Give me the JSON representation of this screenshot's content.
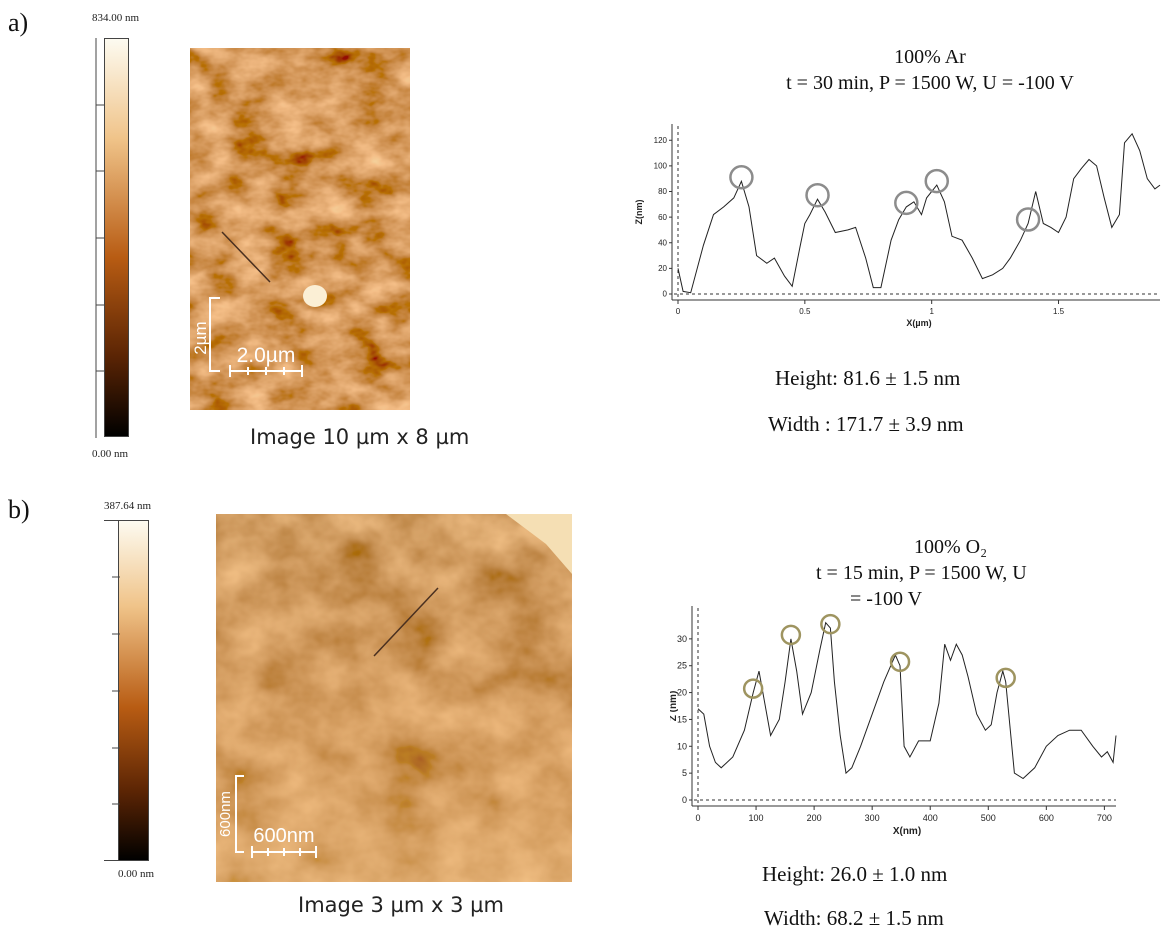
{
  "panels": [
    {
      "label": "a)",
      "colorbar": {
        "max_label": "834.00 nm",
        "min_label": "0.00 nm"
      },
      "afm_image": {
        "caption": "Image 10 µm x 8 µm",
        "scalebar_vertical": "2µm",
        "scalebar_horizontal": "2.0µm"
      },
      "condition": {
        "line1": "100% Ar",
        "line2": "t = 30 min, P = 1500 W, U = -100 V"
      },
      "measurements": {
        "height": "Height: 81.6 ± 1.5 nm",
        "width": "Width : 171.7 ± 3.9 nm"
      }
    },
    {
      "label": "b)",
      "colorbar": {
        "max_label": "387.64 nm",
        "min_label": "0.00 nm"
      },
      "afm_image": {
        "caption": "Image 3 µm x 3 µm",
        "scalebar_vertical": "600nm",
        "scalebar_horizontal": "600nm"
      },
      "condition": {
        "line1": "100% O₂",
        "line2": "t = 15 min, P = 1500 W, U",
        "line3": "= -100 V"
      },
      "measurements": {
        "height": "Height: 26.0 ± 1.0 nm",
        "width": "Width: 68.2 ± 1.5 nm"
      }
    }
  ],
  "chart_data": [
    {
      "type": "line",
      "xlabel": "X(µm)",
      "ylabel": "Z(nm)",
      "xlim": [
        0,
        1.9
      ],
      "ylim": [
        0,
        128
      ],
      "xticks": [
        0,
        0.5,
        1,
        1.5
      ],
      "xtick_labels": [
        "0",
        "0.5",
        "1",
        "1.5"
      ],
      "yticks": [
        0,
        20,
        40,
        60,
        80,
        100,
        120
      ],
      "x": [
        0,
        0.02,
        0.05,
        0.1,
        0.14,
        0.18,
        0.22,
        0.25,
        0.28,
        0.31,
        0.35,
        0.38,
        0.42,
        0.45,
        0.48,
        0.5,
        0.52,
        0.55,
        0.58,
        0.62,
        0.67,
        0.7,
        0.74,
        0.77,
        0.8,
        0.84,
        0.87,
        0.9,
        0.93,
        0.96,
        0.98,
        1.02,
        1.05,
        1.08,
        1.12,
        1.16,
        1.2,
        1.24,
        1.28,
        1.31,
        1.35,
        1.38,
        1.41,
        1.44,
        1.47,
        1.5,
        1.53,
        1.56,
        1.59,
        1.62,
        1.65,
        1.68,
        1.71,
        1.74,
        1.76,
        1.79,
        1.82,
        1.85,
        1.88,
        1.9
      ],
      "y": [
        20,
        2,
        1,
        38,
        62,
        68,
        75,
        88,
        68,
        30,
        24,
        28,
        14,
        6,
        36,
        55,
        62,
        74,
        64,
        48,
        50,
        52,
        28,
        5,
        5,
        42,
        58,
        68,
        72,
        62,
        75,
        85,
        72,
        45,
        42,
        28,
        12,
        15,
        20,
        28,
        42,
        55,
        80,
        55,
        52,
        48,
        60,
        90,
        98,
        105,
        100,
        75,
        52,
        62,
        118,
        125,
        112,
        90,
        82,
        85
      ],
      "highlighted_peaks_x": [
        0.25,
        0.55,
        0.9,
        1.03,
        1.39
      ]
    },
    {
      "type": "line",
      "xlabel": "X(nm)",
      "ylabel": "Z (nm)",
      "xlim": [
        0,
        720
      ],
      "ylim": [
        0,
        35
      ],
      "xticks": [
        0,
        100,
        200,
        300,
        400,
        500,
        600,
        700
      ],
      "yticks": [
        0,
        5,
        10,
        15,
        20,
        25,
        30
      ],
      "x": [
        0,
        10,
        20,
        30,
        40,
        60,
        80,
        95,
        105,
        115,
        125,
        140,
        150,
        160,
        170,
        180,
        195,
        210,
        220,
        228,
        235,
        245,
        255,
        265,
        280,
        300,
        320,
        340,
        348,
        355,
        365,
        380,
        400,
        415,
        425,
        435,
        445,
        455,
        465,
        480,
        495,
        505,
        515,
        525,
        530,
        545,
        560,
        580,
        600,
        620,
        640,
        660,
        680,
        695,
        705,
        715,
        720
      ],
      "y": [
        17,
        16,
        10,
        7,
        6,
        8,
        13,
        20,
        24,
        18,
        12,
        15,
        22,
        30,
        24,
        16,
        20,
        28,
        33,
        32,
        22,
        12,
        5,
        6,
        10,
        16,
        22,
        27,
        25,
        10,
        8,
        11,
        11,
        18,
        29,
        26,
        29,
        27,
        23,
        16,
        13,
        14,
        20,
        24,
        22,
        5,
        4,
        6,
        10,
        12,
        13,
        13,
        10,
        8,
        9,
        7,
        12
      ],
      "highlighted_peaks_x": [
        100,
        163,
        225,
        345,
        535
      ]
    }
  ],
  "colors": {
    "curve": "#222222",
    "circle_a": "#8c8c8c",
    "circle_b": "#9e9460",
    "cb_high": "#fdfbf1",
    "cb_mid": "#b85c13",
    "cb_low": "#000000"
  }
}
